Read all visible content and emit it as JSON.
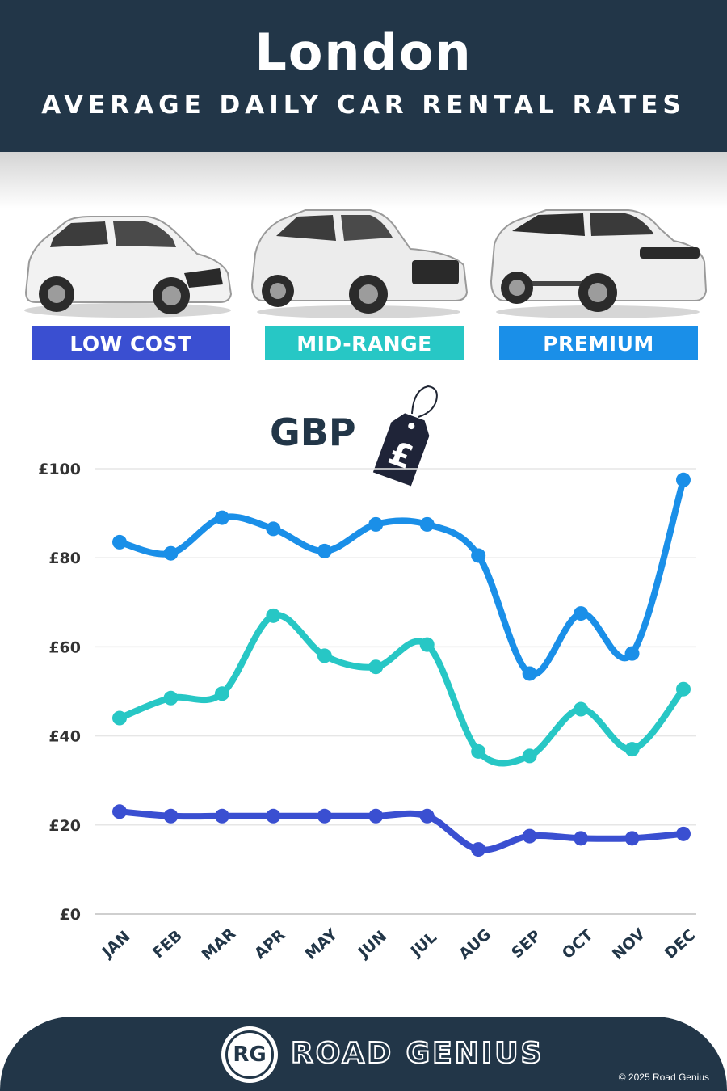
{
  "header": {
    "city": "London",
    "subtitle": "AVERAGE DAILY CAR RENTAL RATES"
  },
  "categories": [
    {
      "label": "LOW COST",
      "color": "#3a4fd1",
      "car_icon": "hatchback-car-image"
    },
    {
      "label": "MID-RANGE",
      "color": "#27c7c5",
      "car_icon": "suv-car-image"
    },
    {
      "label": "PREMIUM",
      "color": "#1a8fe8",
      "car_icon": "luxury-suv-car-image"
    }
  ],
  "currency": {
    "label": "GBP",
    "symbol": "£"
  },
  "chart_data": {
    "type": "line",
    "categories": [
      "JAN",
      "FEB",
      "MAR",
      "APR",
      "MAY",
      "JUN",
      "JUL",
      "AUG",
      "SEP",
      "OCT",
      "NOV",
      "DEC"
    ],
    "series": [
      {
        "name": "PREMIUM",
        "color": "#1a8fe8",
        "values": [
          83.5,
          81,
          89,
          86.5,
          81.5,
          87.5,
          87.5,
          80.5,
          54,
          67.5,
          58.5,
          97.5
        ]
      },
      {
        "name": "MID-RANGE",
        "color": "#27c7c5",
        "values": [
          44,
          48.5,
          49.5,
          67,
          58,
          55.5,
          60.5,
          36.5,
          35.5,
          46,
          37,
          50.5
        ]
      },
      {
        "name": "LOW COST",
        "color": "#3a4fd1",
        "values": [
          23,
          22,
          22,
          22,
          22,
          22,
          22,
          14.5,
          17.5,
          17,
          17,
          18
        ]
      }
    ],
    "y_ticks": [
      "£0",
      "£20",
      "£40",
      "£60",
      "£80",
      "£100"
    ],
    "ylim": [
      0,
      100
    ],
    "grid": true
  },
  "footer": {
    "logo_text": "RG",
    "brand": "ROAD GENIUS",
    "copyright": "© 2025 Road Genius"
  }
}
